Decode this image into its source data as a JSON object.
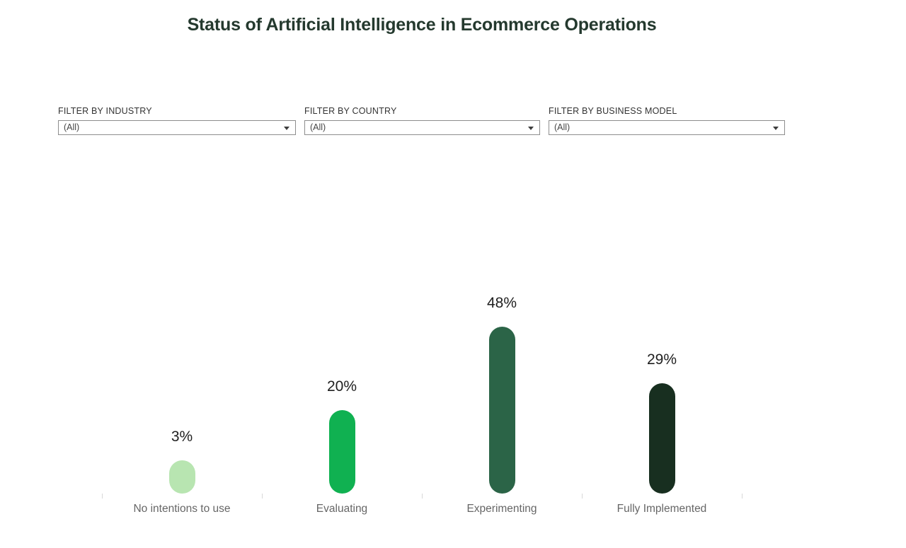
{
  "title": "Status of Artificial Intelligence in Ecommerce Operations",
  "filters": [
    {
      "label": "FILTER BY INDUSTRY",
      "value": "(All)"
    },
    {
      "label": "FILTER BY COUNTRY",
      "value": "(All)"
    },
    {
      "label": "FILTER BY BUSINESS MODEL",
      "value": "(All)"
    }
  ],
  "chart_data": {
    "type": "bar",
    "title": "Status of Artificial Intelligence in Ecommerce Operations",
    "categories": [
      "No intentions to use",
      "Evaluating",
      "Experimenting",
      "Fully Implemented"
    ],
    "values": [
      3,
      20,
      48,
      29
    ],
    "value_labels": [
      "3%",
      "20%",
      "48%",
      "29%"
    ],
    "unit": "percent",
    "series_colors": [
      "#b8e5b1",
      "#10b151",
      "#2b6447",
      "#182f20"
    ],
    "orientation": "vertical",
    "grid": false,
    "legend": false,
    "y_axis_visible": false,
    "x_tick_marks": true,
    "bar_style": "rounded-capsule"
  },
  "colors": {
    "background": "#ffffff",
    "title_text": "#24392e",
    "value_label_text": "#1f1f1f",
    "category_label_text": "#666666",
    "filter_label_text": "#333333",
    "dropdown_border": "#8d8d8d",
    "tick": "#d8d8d8"
  }
}
